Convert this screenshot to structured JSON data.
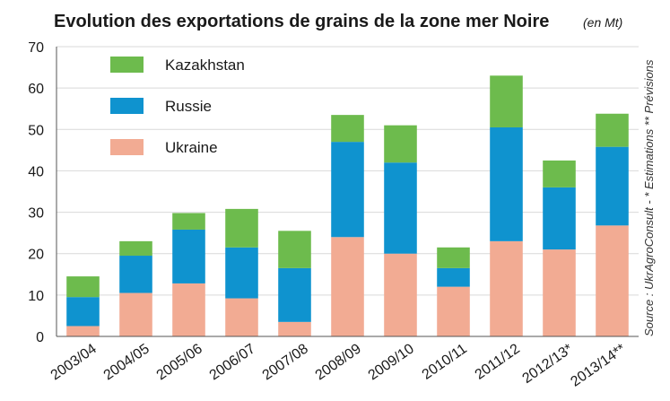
{
  "chart_data": {
    "type": "bar",
    "stacked": true,
    "title": "Evolution des exportations de grains de la zone mer Noire",
    "title_unit": "(en Mt)",
    "categories": [
      "2003/04",
      "2004/05",
      "2005/06",
      "2006/07",
      "2007/08",
      "2008/09",
      "2009/10",
      "2010/11",
      "2011/12",
      "2012/13*",
      "2013/14**"
    ],
    "series": [
      {
        "name": "Ukraine",
        "color": "#f2ab93",
        "values": [
          2.5,
          10.5,
          12.8,
          9.2,
          3.5,
          24,
          20,
          12,
          23,
          21,
          26.8
        ]
      },
      {
        "name": "Russie",
        "color": "#0f93cf",
        "values": [
          7,
          9,
          13,
          12.3,
          13,
          23,
          22,
          4.5,
          27.5,
          15,
          19
        ]
      },
      {
        "name": "Kazakhstan",
        "color": "#6dbb4d",
        "values": [
          5,
          3.5,
          4,
          9.3,
          9,
          6.5,
          9,
          5,
          12.5,
          6.5,
          8
        ]
      }
    ],
    "yticks": [
      0,
      10,
      20,
      30,
      40,
      50,
      60,
      70
    ],
    "ylim": [
      0,
      70
    ],
    "grid": true,
    "legend_order": [
      "Kazakhstan",
      "Russie",
      "Ukraine"
    ],
    "legend_position": "top-left",
    "source": "Source : UkrAgroConsult - * Estimations ** Prévisions"
  },
  "colors": {
    "grid": "#d9d9d9",
    "axis": "#555555",
    "plot_background": "#ffffff"
  }
}
